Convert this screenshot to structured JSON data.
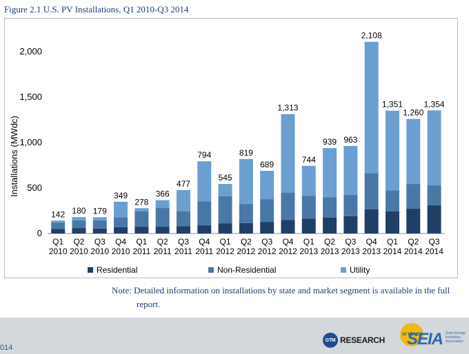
{
  "figure_title": "Figure 2.1  U.S. PV Installations, Q1 2010-Q3 2014",
  "note": {
    "line1": "Note: Detailed information on installations by state and market segment is available in the full",
    "line2": "report."
  },
  "footer": {
    "year_fragment": "014",
    "gtm_mark": "GTM",
    "gtm_word": "RESEARCH",
    "seia_badge": "10 YEARS",
    "seia_word": "SEIA",
    "seia_sub": "Solar Energy Industries Association"
  },
  "colors": {
    "residential": "#203f66",
    "non_residential": "#4a78a6",
    "utility": "#6b9fd1",
    "text": "#1a3e6e"
  },
  "chart_data": {
    "type": "bar",
    "stacked": true,
    "title": "",
    "ylabel": "Installations (MWdc)",
    "xlabel": "",
    "ylim": [
      0,
      2300
    ],
    "yticks": [
      0,
      500,
      1000,
      1500,
      2000
    ],
    "ytick_labels": [
      "0",
      "500",
      "1,000",
      "1,500",
      "2,000"
    ],
    "grid": false,
    "legend_position": "bottom-left",
    "categories": [
      {
        "q": "Q1",
        "y": "2010"
      },
      {
        "q": "Q2",
        "y": "2010"
      },
      {
        "q": "Q3",
        "y": "2010"
      },
      {
        "q": "Q4",
        "y": "2010"
      },
      {
        "q": "Q1",
        "y": "2011"
      },
      {
        "q": "Q2",
        "y": "2011"
      },
      {
        "q": "Q3",
        "y": "2011"
      },
      {
        "q": "Q4",
        "y": "2011"
      },
      {
        "q": "Q1",
        "y": "2012"
      },
      {
        "q": "Q2",
        "y": "2012"
      },
      {
        "q": "Q3",
        "y": "2012"
      },
      {
        "q": "Q4",
        "y": "2012"
      },
      {
        "q": "Q1",
        "y": "2013"
      },
      {
        "q": "Q2",
        "y": "2013"
      },
      {
        "q": "Q3",
        "y": "2013"
      },
      {
        "q": "Q4",
        "y": "2013"
      },
      {
        "q": "Q1",
        "y": "2014"
      },
      {
        "q": "Q2",
        "y": "2014"
      },
      {
        "q": "Q3",
        "y": "2014"
      }
    ],
    "series": [
      {
        "name": "Residential",
        "key": "residential",
        "values": [
          50,
          60,
          55,
          70,
          75,
          75,
          80,
          90,
          110,
          115,
          125,
          150,
          165,
          175,
          190,
          265,
          245,
          275,
          310
        ]
      },
      {
        "name": "Non-Residential",
        "key": "non_residential",
        "values": [
          70,
          85,
          90,
          110,
          170,
          205,
          165,
          265,
          300,
          210,
          250,
          300,
          250,
          225,
          235,
          400,
          230,
          270,
          220
        ]
      },
      {
        "name": "Utility",
        "key": "utility",
        "values": [
          22,
          35,
          34,
          169,
          33,
          86,
          232,
          439,
          135,
          494,
          314,
          863,
          329,
          539,
          538,
          1443,
          876,
          715,
          824
        ]
      }
    ],
    "totals": [
      142,
      180,
      179,
      349,
      278,
      366,
      477,
      794,
      545,
      819,
      689,
      1313,
      744,
      939,
      963,
      2108,
      1351,
      1260,
      1354
    ],
    "total_labels": [
      "142",
      "180",
      "179",
      "349",
      "278",
      "366",
      "477",
      "794",
      "545",
      "819",
      "689",
      "1,313",
      "744",
      "939",
      "963",
      "2,108",
      "1,351",
      "1,260",
      "1,354"
    ]
  }
}
